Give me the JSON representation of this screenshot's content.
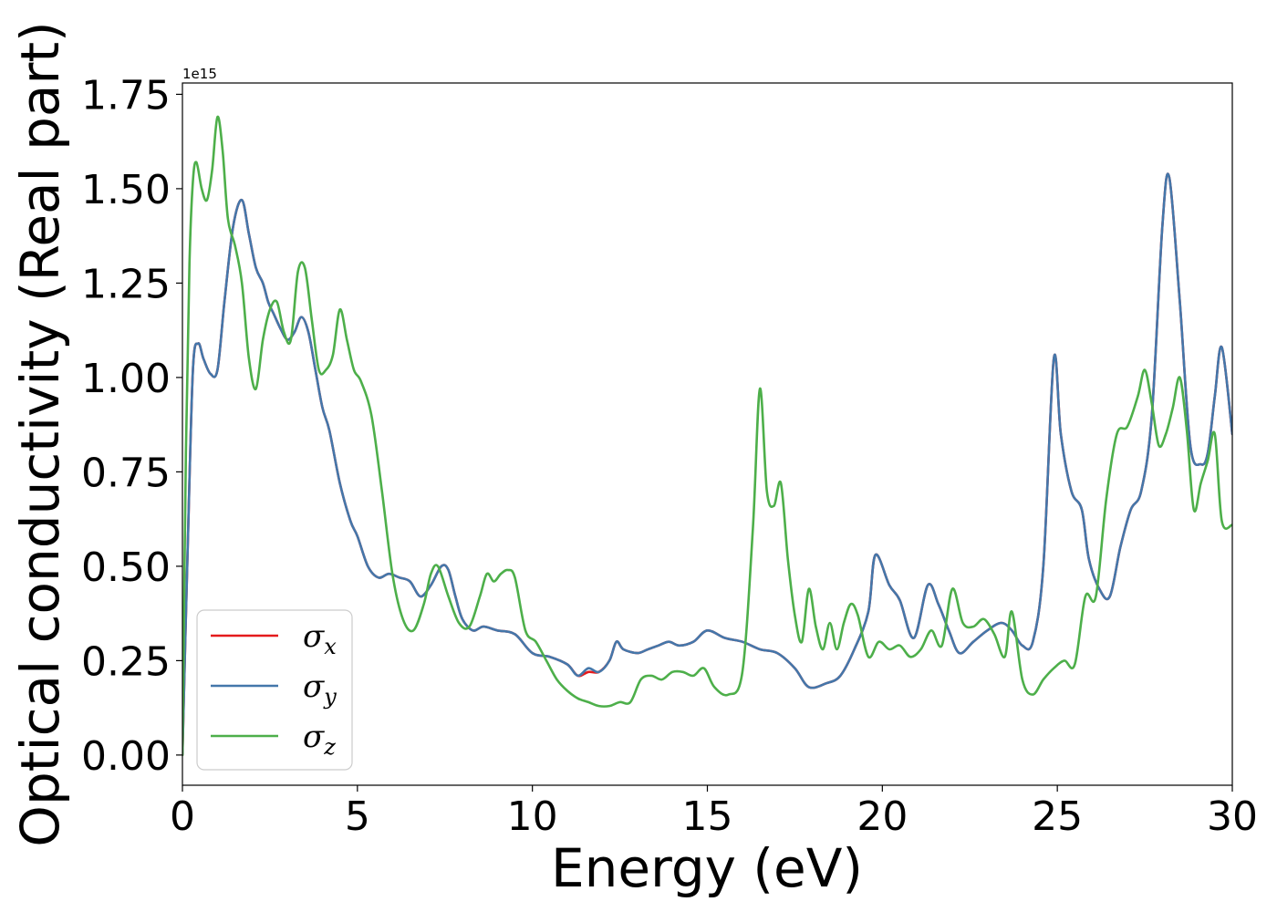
{
  "chart_data": {
    "type": "line",
    "title": "",
    "xlabel": "Energy (eV)",
    "ylabel": "Optical conductivity (Real part)",
    "y_offset_label": "1e15",
    "xlim": [
      0,
      30
    ],
    "ylim": [
      -0.08,
      1.78
    ],
    "x_ticks": [
      0,
      5,
      10,
      15,
      20,
      25,
      30
    ],
    "y_ticks": [
      0.0,
      0.25,
      0.5,
      0.75,
      1.0,
      1.25,
      1.5,
      1.75
    ],
    "x_tick_labels": [
      "0",
      "5",
      "10",
      "15",
      "20",
      "25",
      "30"
    ],
    "y_tick_labels": [
      "0.00",
      "0.25",
      "0.50",
      "0.75",
      "1.00",
      "1.25",
      "1.50",
      "1.75"
    ],
    "grid": false,
    "legend_position": "lower-left",
    "series": [
      {
        "name": "σx",
        "legend_symbol": "σ",
        "legend_sub": "x",
        "color": "#e41a1c",
        "x": [
          0,
          0.15,
          0.3,
          0.45,
          0.6,
          0.8,
          1.0,
          1.2,
          1.45,
          1.7,
          1.9,
          2.1,
          2.3,
          2.45,
          2.6,
          2.8,
          3.0,
          3.2,
          3.4,
          3.6,
          3.8,
          4.0,
          4.2,
          4.5,
          4.8,
          5.0,
          5.3,
          5.6,
          5.9,
          6.2,
          6.5,
          6.8,
          7.1,
          7.4,
          7.6,
          7.8,
          8.0,
          8.3,
          8.6,
          9.0,
          9.5,
          10.0,
          10.5,
          11.0,
          11.3,
          11.6,
          11.9,
          12.2,
          12.4,
          12.6,
          13.0,
          13.3,
          13.6,
          13.9,
          14.2,
          14.6,
          15.0,
          15.5,
          16.0,
          16.5,
          17.0,
          17.5,
          17.9,
          18.4,
          18.8,
          19.2,
          19.6,
          19.8,
          20.2,
          20.5,
          20.9,
          21.3,
          21.6,
          21.9,
          22.2,
          22.6,
          23.0,
          23.4,
          23.7,
          24.0,
          24.3,
          24.6,
          24.9,
          25.1,
          25.4,
          25.7,
          25.9,
          26.2,
          26.5,
          26.8,
          27.1,
          27.4,
          27.7,
          28.0,
          28.2,
          28.5,
          28.8,
          29.1,
          29.3,
          29.5,
          29.7,
          30.0
        ],
        "y": [
          0.0,
          0.55,
          1.02,
          1.09,
          1.05,
          1.01,
          1.02,
          1.2,
          1.4,
          1.47,
          1.38,
          1.29,
          1.25,
          1.2,
          1.17,
          1.13,
          1.1,
          1.12,
          1.16,
          1.12,
          1.02,
          0.92,
          0.86,
          0.72,
          0.62,
          0.58,
          0.5,
          0.47,
          0.48,
          0.47,
          0.46,
          0.42,
          0.45,
          0.5,
          0.49,
          0.42,
          0.36,
          0.33,
          0.34,
          0.33,
          0.32,
          0.27,
          0.26,
          0.24,
          0.21,
          0.22,
          0.22,
          0.25,
          0.3,
          0.28,
          0.27,
          0.28,
          0.29,
          0.3,
          0.29,
          0.3,
          0.33,
          0.31,
          0.3,
          0.28,
          0.27,
          0.23,
          0.18,
          0.19,
          0.21,
          0.28,
          0.38,
          0.53,
          0.45,
          0.41,
          0.31,
          0.45,
          0.4,
          0.33,
          0.27,
          0.3,
          0.33,
          0.35,
          0.33,
          0.29,
          0.3,
          0.5,
          1.05,
          0.85,
          0.7,
          0.65,
          0.52,
          0.44,
          0.42,
          0.55,
          0.65,
          0.7,
          0.9,
          1.4,
          1.53,
          1.2,
          0.82,
          0.77,
          0.8,
          0.95,
          1.08,
          0.85
        ]
      },
      {
        "name": "σy",
        "legend_symbol": "σ",
        "legend_sub": "y",
        "color": "#4477aa",
        "x": [
          0,
          0.15,
          0.3,
          0.45,
          0.6,
          0.8,
          1.0,
          1.2,
          1.45,
          1.7,
          1.9,
          2.1,
          2.3,
          2.45,
          2.6,
          2.8,
          3.0,
          3.2,
          3.4,
          3.6,
          3.8,
          4.0,
          4.2,
          4.5,
          4.8,
          5.0,
          5.3,
          5.6,
          5.9,
          6.2,
          6.5,
          6.8,
          7.1,
          7.4,
          7.6,
          7.8,
          8.0,
          8.3,
          8.6,
          9.0,
          9.5,
          10.0,
          10.5,
          11.0,
          11.3,
          11.6,
          11.9,
          12.2,
          12.4,
          12.6,
          13.0,
          13.3,
          13.6,
          13.9,
          14.2,
          14.6,
          15.0,
          15.5,
          16.0,
          16.5,
          17.0,
          17.5,
          17.9,
          18.4,
          18.8,
          19.2,
          19.6,
          19.8,
          20.2,
          20.5,
          20.9,
          21.3,
          21.6,
          21.9,
          22.2,
          22.6,
          23.0,
          23.4,
          23.7,
          24.0,
          24.3,
          24.6,
          24.9,
          25.1,
          25.4,
          25.7,
          25.9,
          26.2,
          26.5,
          26.8,
          27.1,
          27.4,
          27.7,
          28.0,
          28.2,
          28.5,
          28.8,
          29.1,
          29.3,
          29.5,
          29.7,
          30.0
        ],
        "y": [
          0.0,
          0.55,
          1.02,
          1.09,
          1.05,
          1.01,
          1.02,
          1.2,
          1.4,
          1.47,
          1.38,
          1.29,
          1.25,
          1.2,
          1.17,
          1.13,
          1.1,
          1.12,
          1.16,
          1.12,
          1.02,
          0.92,
          0.86,
          0.72,
          0.62,
          0.58,
          0.5,
          0.47,
          0.48,
          0.47,
          0.46,
          0.42,
          0.45,
          0.5,
          0.49,
          0.42,
          0.36,
          0.33,
          0.34,
          0.33,
          0.32,
          0.27,
          0.26,
          0.24,
          0.21,
          0.23,
          0.22,
          0.25,
          0.3,
          0.28,
          0.27,
          0.28,
          0.29,
          0.3,
          0.29,
          0.3,
          0.33,
          0.31,
          0.3,
          0.28,
          0.27,
          0.23,
          0.18,
          0.19,
          0.21,
          0.28,
          0.38,
          0.53,
          0.45,
          0.41,
          0.31,
          0.45,
          0.4,
          0.33,
          0.27,
          0.3,
          0.33,
          0.35,
          0.33,
          0.29,
          0.3,
          0.5,
          1.05,
          0.85,
          0.7,
          0.65,
          0.52,
          0.44,
          0.42,
          0.55,
          0.65,
          0.7,
          0.9,
          1.4,
          1.53,
          1.2,
          0.82,
          0.77,
          0.8,
          0.95,
          1.08,
          0.85
        ]
      },
      {
        "name": "σz",
        "legend_symbol": "σ",
        "legend_sub": "z",
        "color": "#4daf4a",
        "x": [
          0,
          0.1,
          0.2,
          0.3,
          0.4,
          0.55,
          0.7,
          0.85,
          1.0,
          1.15,
          1.3,
          1.5,
          1.7,
          1.9,
          2.1,
          2.3,
          2.5,
          2.7,
          2.9,
          3.1,
          3.3,
          3.5,
          3.7,
          3.9,
          4.1,
          4.3,
          4.5,
          4.7,
          4.9,
          5.1,
          5.4,
          5.7,
          6.0,
          6.3,
          6.6,
          6.9,
          7.1,
          7.3,
          7.6,
          7.9,
          8.2,
          8.5,
          8.7,
          8.9,
          9.1,
          9.3,
          9.5,
          9.8,
          10.1,
          10.4,
          10.7,
          11.0,
          11.3,
          11.6,
          11.9,
          12.2,
          12.5,
          12.8,
          13.1,
          13.4,
          13.7,
          14.0,
          14.3,
          14.6,
          14.9,
          15.2,
          15.6,
          16.0,
          16.3,
          16.5,
          16.7,
          16.9,
          17.1,
          17.3,
          17.5,
          17.7,
          17.9,
          18.1,
          18.3,
          18.5,
          18.7,
          18.9,
          19.1,
          19.3,
          19.6,
          19.9,
          20.2,
          20.5,
          20.8,
          21.1,
          21.4,
          21.7,
          22.0,
          22.3,
          22.6,
          22.9,
          23.2,
          23.5,
          23.7,
          24.0,
          24.3,
          24.6,
          24.9,
          25.2,
          25.5,
          25.8,
          26.1,
          26.4,
          26.7,
          27.0,
          27.3,
          27.5,
          27.7,
          27.9,
          28.1,
          28.3,
          28.5,
          28.7,
          28.9,
          29.1,
          29.3,
          29.5,
          29.7,
          30.0
        ],
        "y": [
          0.0,
          0.8,
          1.3,
          1.52,
          1.57,
          1.5,
          1.47,
          1.55,
          1.69,
          1.6,
          1.42,
          1.35,
          1.25,
          1.05,
          0.97,
          1.1,
          1.18,
          1.2,
          1.12,
          1.1,
          1.28,
          1.29,
          1.15,
          1.02,
          1.02,
          1.06,
          1.18,
          1.1,
          1.02,
          0.99,
          0.9,
          0.7,
          0.48,
          0.36,
          0.33,
          0.4,
          0.48,
          0.5,
          0.42,
          0.35,
          0.34,
          0.42,
          0.48,
          0.46,
          0.48,
          0.49,
          0.47,
          0.33,
          0.3,
          0.25,
          0.2,
          0.17,
          0.15,
          0.14,
          0.13,
          0.13,
          0.14,
          0.14,
          0.2,
          0.21,
          0.2,
          0.22,
          0.22,
          0.21,
          0.23,
          0.18,
          0.16,
          0.22,
          0.6,
          0.97,
          0.7,
          0.66,
          0.72,
          0.52,
          0.37,
          0.3,
          0.44,
          0.34,
          0.28,
          0.35,
          0.28,
          0.35,
          0.4,
          0.37,
          0.26,
          0.3,
          0.28,
          0.29,
          0.26,
          0.28,
          0.33,
          0.29,
          0.44,
          0.35,
          0.34,
          0.36,
          0.32,
          0.26,
          0.38,
          0.2,
          0.16,
          0.2,
          0.23,
          0.25,
          0.24,
          0.42,
          0.42,
          0.68,
          0.85,
          0.87,
          0.95,
          1.02,
          0.93,
          0.82,
          0.85,
          0.92,
          1.0,
          0.86,
          0.65,
          0.72,
          0.78,
          0.85,
          0.62,
          0.61
        ]
      }
    ]
  }
}
